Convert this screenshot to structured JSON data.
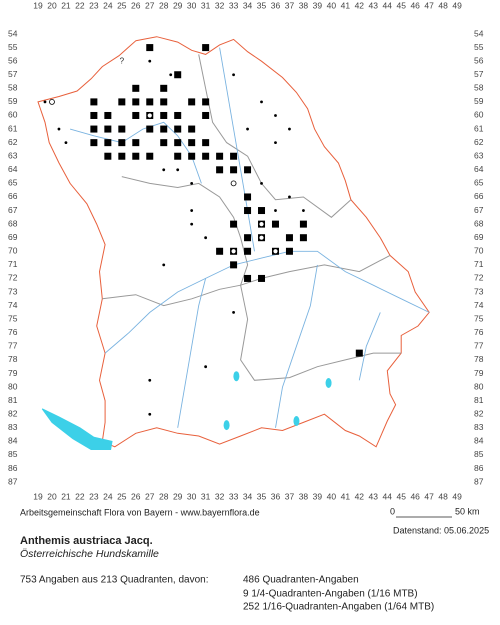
{
  "map": {
    "columns": [
      19,
      20,
      21,
      22,
      23,
      24,
      25,
      26,
      27,
      28,
      29,
      30,
      31,
      32,
      33,
      34,
      35,
      36,
      37,
      38,
      39,
      40,
      41,
      42,
      43,
      44,
      45,
      46,
      47,
      48,
      49
    ],
    "rows": [
      54,
      55,
      56,
      57,
      58,
      59,
      60,
      61,
      62,
      63,
      64,
      65,
      66,
      67,
      68,
      69,
      70,
      71,
      72,
      73,
      74,
      75,
      76,
      77,
      78,
      79,
      80,
      81,
      82,
      83,
      84,
      85,
      86,
      87
    ],
    "unknown_marker": "?"
  },
  "footer": {
    "credit": "Arbeitsgemeinschaft Flora von Bayern - www.bayernflora.de",
    "scale_start": "0",
    "scale_end": "50 km",
    "date": "Datenstand: 05.06.2025",
    "title": "Anthemis austriaca Jacq.",
    "subtitle": "Österreichische Hundskamille",
    "summary": "753 Angaben aus 213 Quadranten, davon:",
    "counts": [
      "486 Quadranten-Angaben",
      "9 1/4-Quadranten-Angaben (1/16 MTB)",
      "252 1/16-Quadranten-Angaben (1/64 MTB)"
    ]
  }
}
